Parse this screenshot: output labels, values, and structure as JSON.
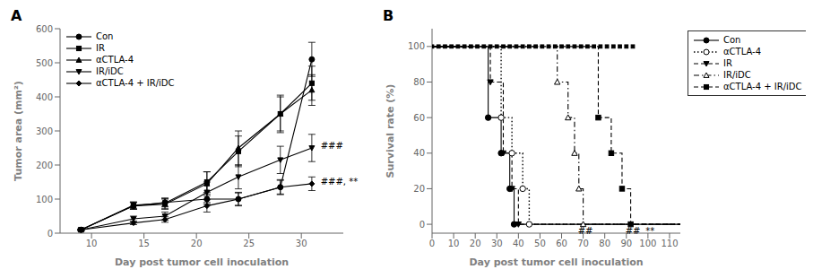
{
  "chart_data": [
    {
      "type": "line",
      "title": "A",
      "x_label": "Day post tumor cell inoculation",
      "y_label": "Tumor area  (mm²)",
      "x": [
        9,
        14,
        17,
        21,
        24,
        28,
        31
      ],
      "xlim": [
        7,
        34
      ],
      "xticks": [
        10,
        15,
        20,
        25,
        30
      ],
      "ylim": [
        0,
        600
      ],
      "yticks": [
        0,
        100,
        200,
        300,
        400,
        500,
        600
      ],
      "grid": false,
      "legend": "upper left",
      "series": [
        {
          "name": "Con",
          "color": "#000000",
          "marker": "circle",
          "line_style": "solid",
          "values": [
            10,
            80,
            90,
            100,
            100,
            135,
            510
          ],
          "errors": [
            2,
            10,
            12,
            15,
            18,
            20,
            50
          ]
        },
        {
          "name": "IR",
          "color": "#000000",
          "marker": "square",
          "line_style": "solid",
          "values": [
            10,
            82,
            88,
            150,
            240,
            350,
            440
          ],
          "errors": [
            2,
            10,
            15,
            30,
            45,
            50,
            50
          ]
        },
        {
          "name": "αCTLA-4",
          "color": "#000000",
          "marker": "triangle",
          "line_style": "solid",
          "values": [
            10,
            80,
            85,
            145,
            250,
            350,
            420
          ],
          "errors": [
            2,
            10,
            15,
            35,
            50,
            55,
            45
          ]
        },
        {
          "name": "IR/iDC",
          "color": "#000000",
          "marker": "triangle_down",
          "line_style": "solid",
          "values": [
            10,
            42,
            50,
            120,
            165,
            215,
            250
          ],
          "errors": [
            2,
            8,
            12,
            30,
            35,
            40,
            40
          ]
        },
        {
          "name": "αCTLA-4 + IR/iDC",
          "color": "#000000",
          "marker": "diamond",
          "line_style": "solid",
          "values": [
            10,
            30,
            40,
            80,
            100,
            135,
            145
          ],
          "errors": [
            2,
            5,
            8,
            18,
            20,
            22,
            20
          ]
        }
      ],
      "annotations": [
        {
          "text": "###",
          "x": 31.5,
          "y": 258
        },
        {
          "text": "###, **",
          "x": 31.5,
          "y": 152
        }
      ]
    },
    {
      "type": "line",
      "title": "B",
      "x_label": "Day post tumor cell inoculation",
      "y_label": "Survival rate (%)",
      "xlim": [
        0,
        115
      ],
      "xticks": [
        0,
        10,
        20,
        30,
        40,
        50,
        60,
        70,
        80,
        90,
        100,
        110
      ],
      "ylim": [
        -5,
        110
      ],
      "yticks": [
        0,
        20,
        40,
        60,
        80,
        100
      ],
      "grid": false,
      "legend": "upper right",
      "series": [
        {
          "type": "scatter",
          "color": "#000000",
          "marker": "square",
          "x": [
            0,
            3,
            6,
            9,
            12,
            15,
            18,
            21,
            24,
            27,
            30,
            33,
            36,
            39,
            42,
            45,
            48,
            51,
            54,
            57,
            60,
            63,
            66,
            69,
            72,
            75,
            78,
            81,
            84,
            87,
            90,
            93
          ],
          "values": [
            100,
            100,
            100,
            100,
            100,
            100,
            100,
            100,
            100,
            100,
            100,
            100,
            100,
            100,
            100,
            100,
            100,
            100,
            100,
            100,
            100,
            100,
            100,
            100,
            100,
            100,
            100,
            100,
            100,
            100,
            100,
            100
          ]
        },
        {
          "name": "Con",
          "color": "#000000",
          "marker": "circle",
          "line_style": "solid",
          "x": [
            0,
            26,
            26,
            32,
            32,
            36,
            36,
            38,
            38,
            115
          ],
          "values": [
            100,
            100,
            60,
            60,
            40,
            40,
            20,
            20,
            0,
            0
          ],
          "marker_x": [
            26,
            32,
            36,
            38
          ],
          "marker_values": [
            60,
            40,
            20,
            0
          ]
        },
        {
          "name": "αCTLA-4",
          "color": "#000000",
          "marker": "circle_open",
          "line_style": "dotted",
          "x": [
            0,
            32,
            32,
            37,
            37,
            42,
            42,
            45,
            45,
            115
          ],
          "values": [
            100,
            100,
            60,
            60,
            40,
            40,
            20,
            20,
            0,
            0
          ],
          "marker_x": [
            32,
            37,
            42,
            45
          ],
          "marker_values": [
            60,
            40,
            20,
            0
          ]
        },
        {
          "name": "IR",
          "color": "#000000",
          "marker": "triangle_down",
          "line_style": "dashed",
          "x": [
            0,
            27,
            27,
            33,
            33,
            37,
            37,
            40,
            40,
            115
          ],
          "values": [
            100,
            100,
            80,
            80,
            40,
            40,
            20,
            20,
            0,
            0
          ],
          "marker_x": [
            27,
            33,
            37,
            40
          ],
          "marker_values": [
            80,
            40,
            20,
            0
          ]
        },
        {
          "name": "IR/iDC",
          "color": "#000000",
          "marker": "triangle_open",
          "line_style": "dashdot",
          "x": [
            0,
            58,
            58,
            63,
            63,
            66,
            66,
            68,
            68,
            70,
            70,
            115
          ],
          "values": [
            100,
            100,
            80,
            80,
            60,
            60,
            40,
            40,
            20,
            20,
            0,
            0
          ],
          "marker_x": [
            58,
            63,
            66,
            68,
            70
          ],
          "marker_values": [
            80,
            60,
            40,
            20,
            0
          ]
        },
        {
          "name": "αCTLA-4 + IR/iDC",
          "color": "#000000",
          "marker": "square",
          "line_style": "dashed",
          "x": [
            0,
            77,
            77,
            83,
            83,
            88,
            88,
            92,
            92,
            115
          ],
          "values": [
            100,
            100,
            60,
            60,
            40,
            40,
            20,
            20,
            0,
            0
          ],
          "marker_x": [
            77,
            83,
            88,
            92
          ],
          "marker_values": [
            60,
            40,
            20,
            0
          ]
        }
      ],
      "annotations": [
        {
          "text": "##",
          "x": 71,
          "y": -3.5
        },
        {
          "text": "##",
          "x": 93,
          "y": -3.5
        },
        {
          "text": "**",
          "x": 101,
          "y": -3.5
        }
      ]
    }
  ]
}
